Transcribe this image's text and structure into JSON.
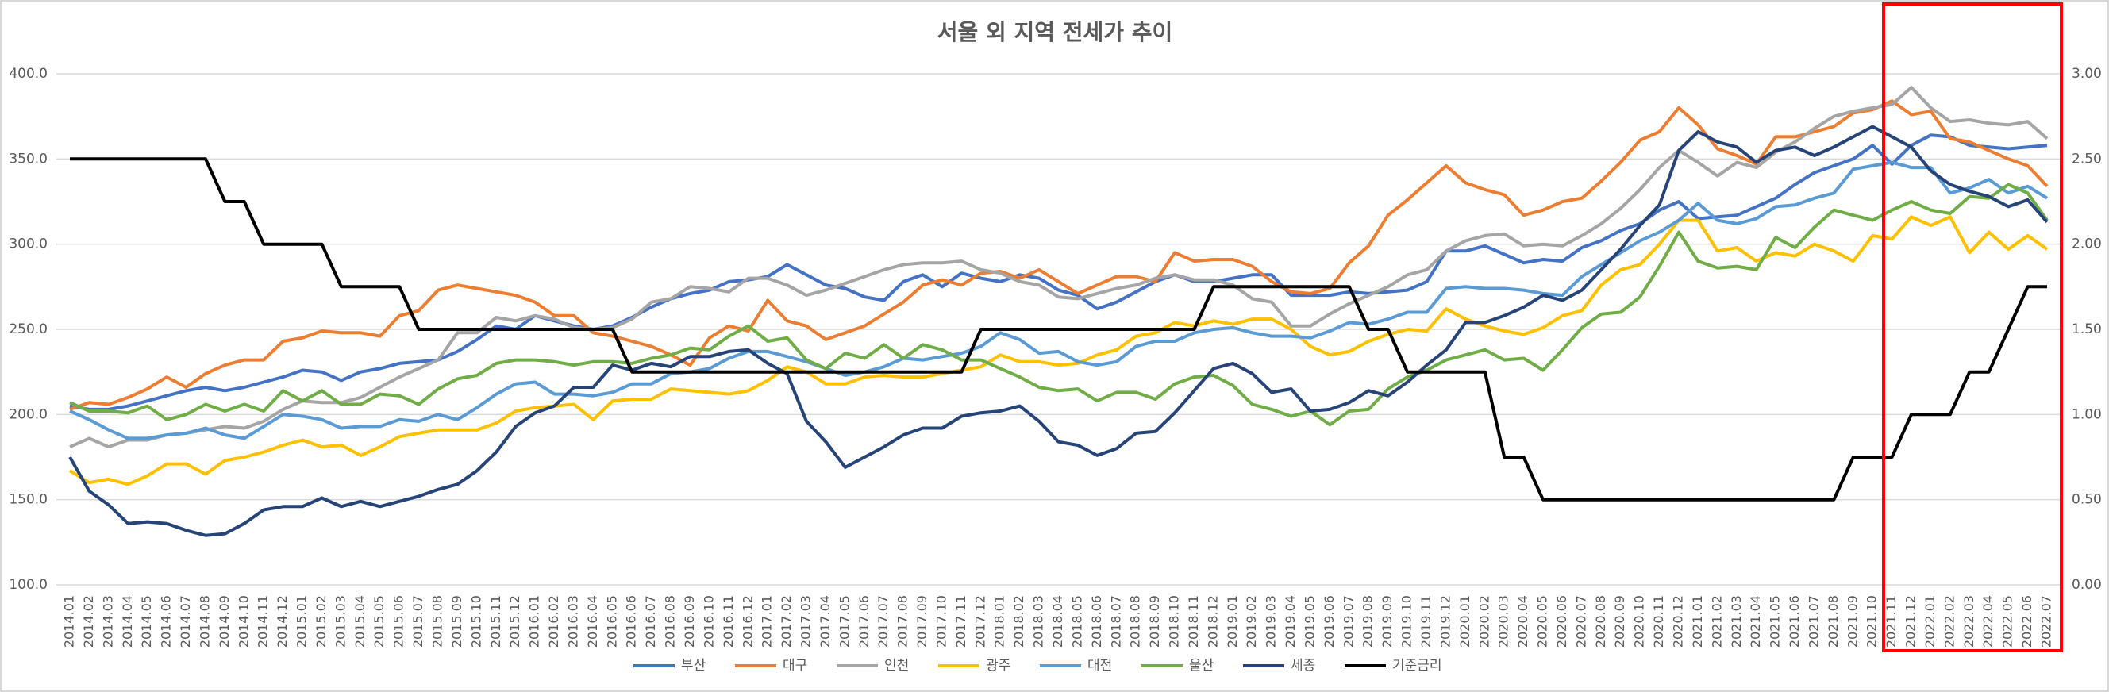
{
  "chart_data": {
    "type": "line",
    "title": "서울 외 지역 전세가 추이",
    "categories": [
      "2014.01",
      "2014.02",
      "2014.03",
      "2014.04",
      "2014.05",
      "2014.06",
      "2014.07",
      "2014.08",
      "2014.09",
      "2014.10",
      "2014.11",
      "2014.12",
      "2015.01",
      "2015.02",
      "2015.03",
      "2015.04",
      "2015.05",
      "2015.06",
      "2015.07",
      "2015.08",
      "2015.09",
      "2015.10",
      "2015.11",
      "2015.12",
      "2016.01",
      "2016.02",
      "2016.03",
      "2016.04",
      "2016.05",
      "2016.06",
      "2016.07",
      "2016.08",
      "2016.09",
      "2016.10",
      "2016.11",
      "2016.12",
      "2017.01",
      "2017.02",
      "2017.03",
      "2017.04",
      "2017.05",
      "2017.06",
      "2017.07",
      "2017.08",
      "2017.09",
      "2017.10",
      "2017.11",
      "2017.12",
      "2018.01",
      "2018.02",
      "2018.03",
      "2018.04",
      "2018.05",
      "2018.06",
      "2018.07",
      "2018.08",
      "2018.09",
      "2018.10",
      "2018.11",
      "2018.12",
      "2019.01",
      "2019.02",
      "2019.03",
      "2019.04",
      "2019.05",
      "2019.06",
      "2019.07",
      "2019.08",
      "2019.09",
      "2019.10",
      "2019.11",
      "2019.12",
      "2020.01",
      "2020.02",
      "2020.03",
      "2020.04",
      "2020.05",
      "2020.06",
      "2020.07",
      "2020.08",
      "2020.09",
      "2020.10",
      "2020.11",
      "2020.12",
      "2021.01",
      "2021.02",
      "2021.03",
      "2021.04",
      "2021.05",
      "2021.06",
      "2021.07",
      "2021.08",
      "2021.09",
      "2021.10",
      "2021.11",
      "2021.12",
      "2022.01",
      "2022.02",
      "2022.03",
      "2022.04",
      "2022.05",
      "2022.06",
      "2022.07"
    ],
    "series": [
      {
        "name": "부산",
        "color": "#4472c4",
        "values": [
          205,
          203,
          203,
          205,
          208,
          211,
          214,
          216,
          214,
          216,
          219,
          222,
          226,
          225,
          220,
          225,
          227,
          230,
          231,
          232,
          237,
          244,
          252,
          250,
          258,
          255,
          252,
          250,
          252,
          257,
          263,
          268,
          271,
          273,
          278,
          279,
          281,
          288,
          282,
          276,
          274,
          269,
          267,
          278,
          282,
          275,
          283,
          280,
          278,
          282,
          280,
          273,
          270,
          262,
          266,
          272,
          278,
          282,
          278,
          278,
          280,
          282,
          282,
          270,
          270,
          270,
          272,
          271,
          272,
          273,
          278,
          296,
          296,
          299,
          294,
          289,
          291,
          290,
          298,
          302,
          308,
          312,
          320,
          325,
          315,
          316,
          317,
          322,
          327,
          335,
          342,
          346,
          350,
          358,
          347,
          358,
          364,
          363,
          358,
          357,
          356,
          357,
          358
        ]
      },
      {
        "name": "대구",
        "color": "#ed7d31",
        "values": [
          203,
          207,
          206,
          210,
          215,
          222,
          216,
          224,
          229,
          232,
          232,
          243,
          245,
          249,
          248,
          248,
          246,
          258,
          261,
          273,
          276,
          274,
          272,
          270,
          266,
          258,
          258,
          248,
          246,
          243,
          240,
          235,
          229,
          245,
          252,
          249,
          267,
          255,
          252,
          244,
          248,
          252,
          259,
          266,
          276,
          279,
          276,
          283,
          284,
          280,
          285,
          278,
          271,
          276,
          281,
          281,
          278,
          295,
          290,
          291,
          291,
          287,
          278,
          272,
          271,
          274,
          289,
          299,
          317,
          326,
          336,
          346,
          336,
          332,
          329,
          317,
          320,
          325,
          327,
          337,
          348,
          361,
          366,
          380,
          370,
          356,
          352,
          347,
          363,
          363,
          366,
          369,
          377,
          379,
          384,
          376,
          378,
          362,
          360,
          355,
          350,
          346,
          334
        ]
      },
      {
        "name": "인천",
        "color": "#a5a5a5",
        "values": [
          181,
          186,
          181,
          185,
          185,
          188,
          189,
          191,
          193,
          192,
          196,
          203,
          208,
          207,
          207,
          210,
          216,
          222,
          227,
          232,
          248,
          248,
          257,
          255,
          258,
          256,
          251,
          250,
          251,
          256,
          266,
          268,
          275,
          274,
          272,
          280,
          280,
          276,
          270,
          273,
          277,
          281,
          285,
          288,
          289,
          289,
          290,
          285,
          283,
          278,
          276,
          269,
          268,
          271,
          274,
          276,
          280,
          282,
          279,
          279,
          276,
          268,
          266,
          252,
          252,
          259,
          265,
          270,
          275,
          282,
          285,
          296,
          302,
          305,
          306,
          299,
          300,
          299,
          305,
          312,
          321,
          332,
          345,
          355,
          348,
          340,
          348,
          345,
          354,
          360,
          368,
          375,
          378,
          380,
          382,
          392,
          380,
          372,
          373,
          371,
          370,
          372,
          362
        ]
      },
      {
        "name": "광주",
        "color": "#ffc000",
        "values": [
          167,
          160,
          162,
          159,
          164,
          171,
          171,
          165,
          173,
          175,
          178,
          182,
          185,
          181,
          182,
          176,
          181,
          187,
          189,
          191,
          191,
          191,
          195,
          202,
          204,
          205,
          206,
          197,
          208,
          209,
          209,
          215,
          214,
          213,
          212,
          214,
          220,
          228,
          225,
          218,
          218,
          222,
          223,
          222,
          222,
          224,
          226,
          228,
          235,
          231,
          231,
          229,
          230,
          235,
          238,
          246,
          248,
          254,
          252,
          255,
          253,
          256,
          256,
          250,
          240,
          235,
          237,
          243,
          247,
          250,
          249,
          262,
          256,
          252,
          249,
          247,
          251,
          258,
          261,
          276,
          285,
          288,
          300,
          314,
          314,
          296,
          298,
          290,
          295,
          293,
          300,
          296,
          290,
          305,
          303,
          316,
          311,
          316,
          295,
          307,
          297,
          305,
          297
        ]
      },
      {
        "name": "대전",
        "color": "#5b9bd5",
        "values": [
          202,
          197,
          191,
          186,
          186,
          188,
          189,
          192,
          188,
          186,
          193,
          200,
          199,
          197,
          192,
          193,
          193,
          197,
          196,
          200,
          197,
          204,
          212,
          218,
          219,
          212,
          212,
          211,
          213,
          218,
          218,
          224,
          225,
          227,
          233,
          237,
          237,
          234,
          231,
          227,
          223,
          225,
          228,
          233,
          232,
          234,
          236,
          240,
          248,
          244,
          236,
          237,
          231,
          229,
          231,
          240,
          243,
          243,
          248,
          250,
          251,
          248,
          246,
          246,
          245,
          249,
          254,
          253,
          256,
          260,
          260,
          274,
          275,
          274,
          274,
          273,
          271,
          270,
          281,
          288,
          295,
          302,
          307,
          314,
          324,
          314,
          312,
          315,
          322,
          323,
          327,
          330,
          344,
          346,
          348,
          345,
          345,
          330,
          333,
          338,
          330,
          334,
          327
        ]
      },
      {
        "name": "울산",
        "color": "#70ad47",
        "values": [
          207,
          202,
          202,
          201,
          205,
          197,
          200,
          206,
          202,
          206,
          202,
          214,
          208,
          214,
          206,
          206,
          212,
          211,
          206,
          215,
          221,
          223,
          230,
          232,
          232,
          231,
          229,
          231,
          231,
          230,
          233,
          235,
          239,
          238,
          246,
          252,
          243,
          245,
          232,
          227,
          236,
          233,
          241,
          233,
          241,
          238,
          232,
          232,
          227,
          222,
          216,
          214,
          215,
          208,
          213,
          213,
          209,
          218,
          222,
          223,
          217,
          206,
          203,
          199,
          202,
          194,
          202,
          203,
          215,
          222,
          226,
          232,
          235,
          238,
          232,
          233,
          226,
          238,
          251,
          259,
          260,
          269,
          287,
          307,
          290,
          286,
          287,
          285,
          304,
          298,
          310,
          320,
          317,
          314,
          320,
          325,
          320,
          318,
          328,
          327,
          335,
          330,
          314
        ]
      },
      {
        "name": "세종",
        "color": "#264478",
        "values": [
          175,
          155,
          147,
          136,
          137,
          136,
          132,
          129,
          130,
          136,
          144,
          146,
          146,
          151,
          146,
          149,
          146,
          149,
          152,
          156,
          159,
          167,
          178,
          193,
          201,
          205,
          216,
          216,
          229,
          226,
          230,
          228,
          234,
          234,
          237,
          238,
          230,
          224,
          196,
          184,
          169,
          175,
          181,
          188,
          192,
          192,
          199,
          201,
          202,
          205,
          196,
          184,
          182,
          176,
          180,
          189,
          190,
          201,
          214,
          227,
          230,
          224,
          213,
          215,
          202,
          203,
          207,
          214,
          211,
          219,
          229,
          238,
          254,
          254,
          258,
          263,
          270,
          267,
          273,
          285,
          297,
          311,
          323,
          355,
          366,
          360,
          357,
          348,
          355,
          357,
          352,
          357,
          363,
          369,
          363,
          357,
          343,
          335,
          331,
          328,
          322,
          326,
          313
        ]
      },
      {
        "name": "기준금리",
        "color": "#000000",
        "axis": "y2",
        "values": [
          2.5,
          2.5,
          2.5,
          2.5,
          2.5,
          2.5,
          2.5,
          2.5,
          2.25,
          2.25,
          2,
          2,
          2,
          2,
          1.75,
          1.75,
          1.75,
          1.75,
          1.5,
          1.5,
          1.5,
          1.5,
          1.5,
          1.5,
          1.5,
          1.5,
          1.5,
          1.5,
          1.5,
          1.25,
          1.25,
          1.25,
          1.25,
          1.25,
          1.25,
          1.25,
          1.25,
          1.25,
          1.25,
          1.25,
          1.25,
          1.25,
          1.25,
          1.25,
          1.25,
          1.25,
          1.25,
          1.5,
          1.5,
          1.5,
          1.5,
          1.5,
          1.5,
          1.5,
          1.5,
          1.5,
          1.5,
          1.5,
          1.5,
          1.75,
          1.75,
          1.75,
          1.75,
          1.75,
          1.75,
          1.75,
          1.75,
          1.5,
          1.5,
          1.25,
          1.25,
          1.25,
          1.25,
          1.25,
          0.75,
          0.75,
          0.5,
          0.5,
          0.5,
          0.5,
          0.5,
          0.5,
          0.5,
          0.5,
          0.5,
          0.5,
          0.5,
          0.5,
          0.5,
          0.5,
          0.5,
          0.5,
          0.75,
          0.75,
          0.75,
          1,
          1,
          1,
          1.25,
          1.25,
          1.5,
          1.75,
          1.75
        ]
      }
    ],
    "ylim": [
      100,
      400
    ],
    "yticks": [
      {
        "value": 100,
        "label": "100.0"
      },
      {
        "value": 150,
        "label": "150.0"
      },
      {
        "value": 200,
        "label": "200.0"
      },
      {
        "value": 250,
        "label": "250.0"
      },
      {
        "value": 300,
        "label": "300.0"
      },
      {
        "value": 350,
        "label": "350.0"
      },
      {
        "value": 400,
        "label": "400.0"
      }
    ],
    "y2lim": [
      0,
      3
    ],
    "y2ticks": [
      {
        "value": 0,
        "label": "0.00"
      },
      {
        "value": 0.5,
        "label": "0.50"
      },
      {
        "value": 1,
        "label": "1.00"
      },
      {
        "value": 1.5,
        "label": "1.50"
      },
      {
        "value": 2,
        "label": "2.00"
      },
      {
        "value": 2.5,
        "label": "2.50"
      },
      {
        "value": 3,
        "label": "3.00"
      }
    ],
    "grid": true,
    "legend": "bottom"
  }
}
